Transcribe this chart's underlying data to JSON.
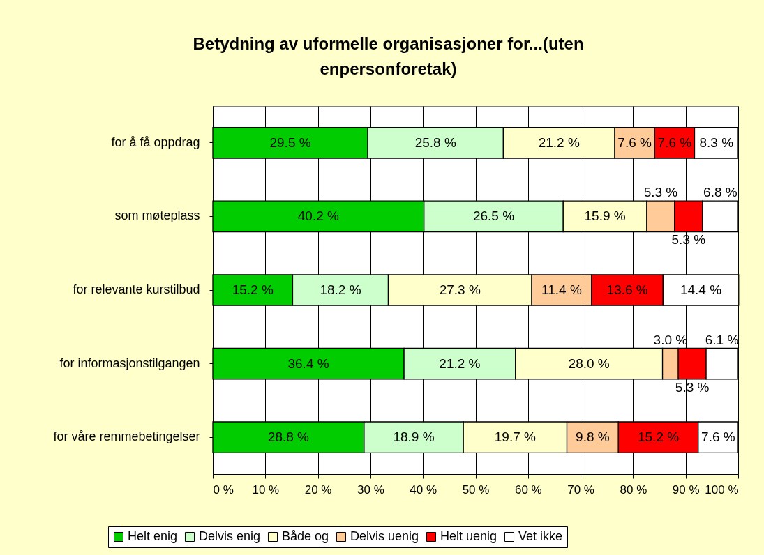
{
  "chart_data": {
    "type": "bar",
    "orientation": "horizontal",
    "stacked": true,
    "title": "Betydning av uformelle organisasjoner for...(uten enpersonforetak)",
    "categories": [
      "for å få oppdrag",
      "som møteplass",
      "for relevante kurstilbud",
      "for informasjonstilgangen",
      "for våre remmebetingelser"
    ],
    "series": [
      {
        "name": "Helt enig",
        "color": "#00cc00",
        "values": [
          29.5,
          40.2,
          15.2,
          36.4,
          28.8
        ],
        "value_labels": [
          "29.5 %",
          "40.2 %",
          "15.2 %",
          "36.4 %",
          "28.8 %"
        ]
      },
      {
        "name": "Delvis enig",
        "color": "#ccffcc",
        "values": [
          25.8,
          26.5,
          18.2,
          21.2,
          18.9
        ],
        "value_labels": [
          "25.8 %",
          "26.5 %",
          "18.2 %",
          "21.2 %",
          "18.9 %"
        ]
      },
      {
        "name": "Både og",
        "color": "#ffffcc",
        "values": [
          21.2,
          15.9,
          27.3,
          28.0,
          19.7
        ],
        "value_labels": [
          "21.2 %",
          "15.9 %",
          "27.3 %",
          "28.0 %",
          "19.7 %"
        ]
      },
      {
        "name": "Delvis uenig",
        "color": "#ffcc99",
        "values": [
          7.6,
          5.3,
          11.4,
          3.0,
          9.8
        ],
        "value_labels": [
          "7.6 %",
          "5.3 %",
          "11.4 %",
          "3.0 %",
          "9.8 %"
        ]
      },
      {
        "name": "Helt uenig",
        "color": "#ff0000",
        "values": [
          7.6,
          5.3,
          13.6,
          5.3,
          15.2
        ],
        "value_labels": [
          "7.6 %",
          "5.3 %",
          "13.6 %",
          "5.3 %",
          "15.2 %"
        ]
      },
      {
        "name": "Vet ikke",
        "color": "#ffffff",
        "values": [
          8.3,
          6.8,
          14.4,
          6.1,
          7.6
        ],
        "value_labels": [
          "8.3 %",
          "6.8 %",
          "14.4 %",
          "6.1 %",
          "7.6 %"
        ]
      }
    ],
    "xlim": [
      0,
      100
    ],
    "xticks": [
      {
        "value": 0,
        "label": "0 %"
      },
      {
        "value": 10,
        "label": "10 %"
      },
      {
        "value": 20,
        "label": "20 %"
      },
      {
        "value": 30,
        "label": "30 %"
      },
      {
        "value": 40,
        "label": "40 %"
      },
      {
        "value": 50,
        "label": "50 %"
      },
      {
        "value": 60,
        "label": "60 %"
      },
      {
        "value": 70,
        "label": "70 %"
      },
      {
        "value": 80,
        "label": "80 %"
      },
      {
        "value": 90,
        "label": "90 %"
      },
      {
        "value": 100,
        "label": "100 %"
      }
    ],
    "grid": "x",
    "legend": "bottom"
  }
}
